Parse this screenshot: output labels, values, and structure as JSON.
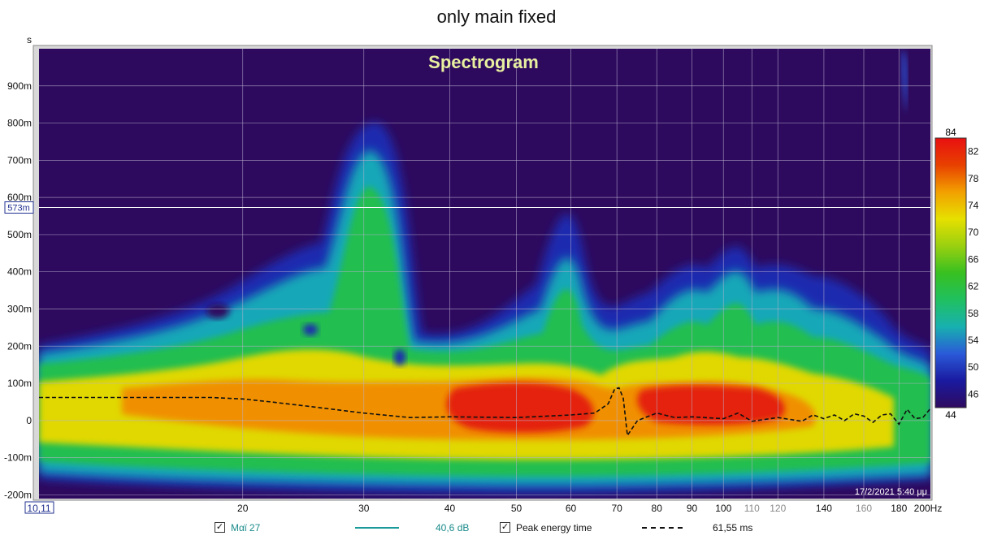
{
  "page_title": "only main fixed",
  "colors": {
    "background": "#2E0A5E",
    "grid": "#b9b0cf",
    "cursor_line": "#ffffff",
    "trace_series": "#1a9a9a",
    "peak_line": "#111111",
    "title_inner": "#e8f0a0"
  },
  "chart_data": {
    "type": "heatmap",
    "title": "Spectrogram",
    "y_unit": "s",
    "x_unit": "Hz",
    "x_scale": "log",
    "xlim": [
      10.11,
      200
    ],
    "ylim": [
      -0.21,
      1.0
    ],
    "x_tick_labels": [
      "10,11",
      "20",
      "30",
      "40",
      "50",
      "60",
      "70",
      "80",
      "90",
      "100",
      "110",
      "120",
      "140",
      "160",
      "180",
      "200Hz"
    ],
    "x_tick_values": [
      10.11,
      20,
      30,
      40,
      50,
      60,
      70,
      80,
      90,
      100,
      110,
      120,
      140,
      160,
      180,
      200
    ],
    "y_tick_labels": [
      "900m",
      "800m",
      "700m",
      "600m",
      "500m",
      "400m",
      "300m",
      "200m",
      "100m",
      "0",
      "-100m",
      "-200m"
    ],
    "y_tick_values": [
      0.9,
      0.8,
      0.7,
      0.6,
      0.5,
      0.4,
      0.3,
      0.2,
      0.1,
      0.0,
      -0.1,
      -0.2
    ],
    "cursor_label": "573m",
    "cursor_value": 0.573,
    "timestamp": "17/2/2021 5:40 μμ",
    "colorbar": {
      "min": 44,
      "max": 84,
      "min_label": "44",
      "max_label": "84",
      "tick_labels": [
        "82",
        "78",
        "74",
        "70",
        "66",
        "62",
        "58",
        "54",
        "50",
        "46"
      ],
      "tick_values": [
        82,
        78,
        74,
        70,
        66,
        62,
        58,
        54,
        50,
        46
      ],
      "stops": [
        "#2E0A5E",
        "#1a1aa0",
        "#2a5ad8",
        "#18b0b0",
        "#20c060",
        "#38c020",
        "#9ad010",
        "#e6e000",
        "#f2a000",
        "#e84000",
        "#e81010"
      ]
    },
    "peak_energy_time": {
      "name": "Peak energy time",
      "x": [
        10.11,
        14,
        18,
        20,
        22,
        25,
        30,
        35,
        40,
        50,
        60,
        65,
        68,
        69.5,
        70.5,
        71.5,
        72.5,
        75,
        80,
        85,
        90,
        100,
        105,
        110,
        120,
        130,
        135,
        140,
        145,
        150,
        155,
        160,
        165,
        170,
        175,
        180,
        185,
        190,
        195,
        200
      ],
      "y": [
        0.062,
        0.062,
        0.062,
        0.058,
        0.05,
        0.038,
        0.02,
        0.008,
        0.01,
        0.008,
        0.015,
        0.02,
        0.045,
        0.085,
        0.088,
        0.06,
        -0.04,
        0.0,
        0.02,
        0.008,
        0.01,
        0.005,
        0.02,
        -0.002,
        0.008,
        -0.002,
        0.015,
        0.005,
        0.015,
        0.0,
        0.018,
        0.012,
        -0.005,
        0.015,
        0.018,
        -0.01,
        0.03,
        0.005,
        0.008,
        0.032
      ]
    }
  },
  "legend": {
    "series1_label": "Μαϊ 27",
    "series1_value": "40,6 dB",
    "series2_label": "Peak energy time",
    "series2_value": "61,55 ms",
    "check_mark": "✓"
  }
}
